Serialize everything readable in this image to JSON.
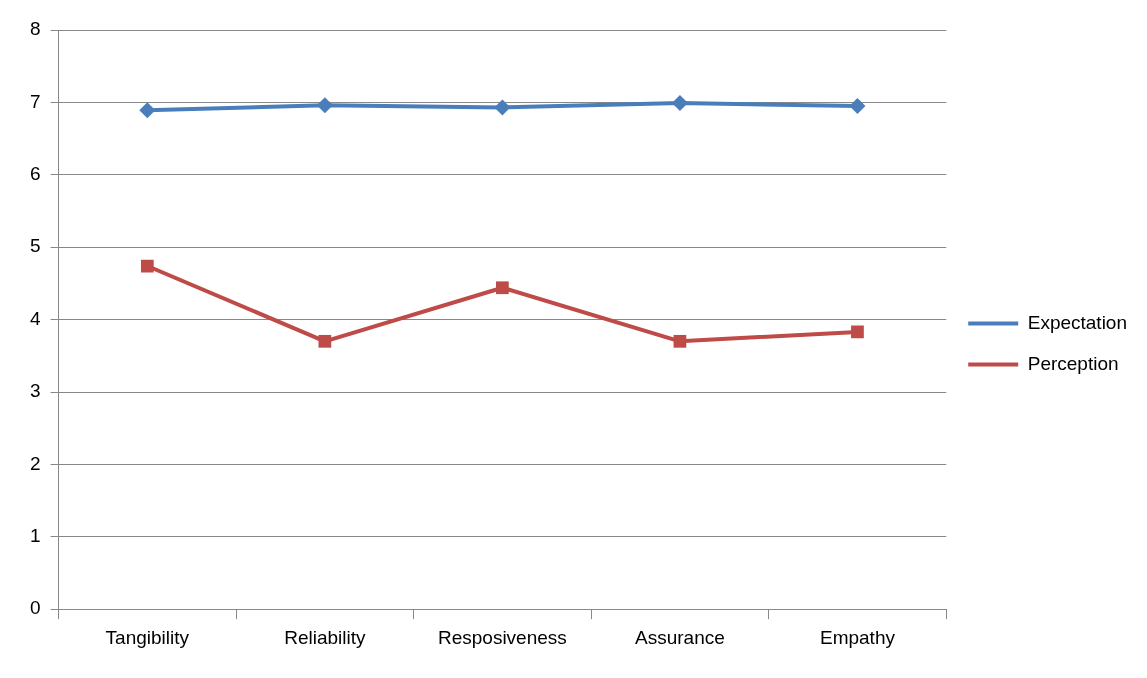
{
  "chart_data": {
    "type": "line",
    "categories": [
      "Tangibility",
      "Reliability",
      "Resposiveness",
      "Assurance",
      "Empathy"
    ],
    "series": [
      {
        "name": "Expectation",
        "color": "#4a7ebb",
        "marker": "diamond",
        "values": [
          6.89,
          6.96,
          6.93,
          6.99,
          6.95
        ]
      },
      {
        "name": "Perception",
        "color": "#be4b48",
        "marker": "square",
        "values": [
          4.74,
          3.7,
          4.44,
          3.7,
          3.83
        ]
      }
    ],
    "ylim": [
      0,
      8
    ],
    "yticks": [
      0,
      1,
      2,
      3,
      4,
      5,
      6,
      7,
      8
    ],
    "grid": "y",
    "legend": "right",
    "line_style": "solid"
  }
}
